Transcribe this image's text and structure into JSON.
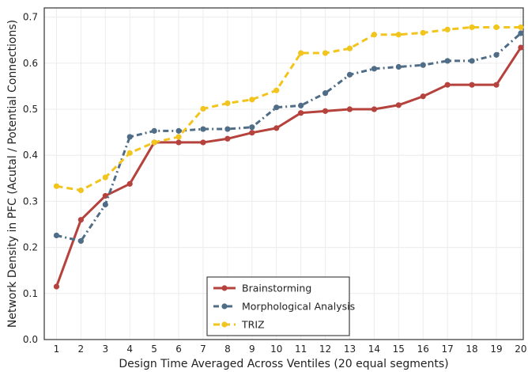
{
  "chart_data": {
    "type": "line",
    "title": "",
    "xlabel": "Design Time Averaged Across Ventiles (20 equal segments)",
    "ylabel": "Network Density in PFC (Acutal / Potential Connections)",
    "x": [
      1,
      2,
      3,
      4,
      5,
      6,
      7,
      8,
      9,
      10,
      11,
      12,
      13,
      14,
      15,
      16,
      17,
      18,
      19,
      20
    ],
    "xlim": [
      0.5,
      20.1
    ],
    "ylim": [
      0.0,
      0.72
    ],
    "yticks": [
      "0.0",
      "0.1",
      "0.2",
      "0.3",
      "0.4",
      "0.5",
      "0.6",
      "0.7"
    ],
    "xticks": [
      "1",
      "2",
      "3",
      "4",
      "5",
      "6",
      "7",
      "8",
      "9",
      "10",
      "11",
      "12",
      "13",
      "14",
      "15",
      "16",
      "17",
      "18",
      "19",
      "20"
    ],
    "grid": true,
    "legend_position": "bottom-center",
    "series": [
      {
        "name": "Brainstorming",
        "color": "#b5423c",
        "line_style": "solid",
        "values": [
          0.115,
          0.26,
          0.312,
          0.338,
          0.428,
          0.428,
          0.428,
          0.436,
          0.449,
          0.459,
          0.492,
          0.496,
          0.5,
          0.5,
          0.509,
          0.528,
          0.553,
          0.553,
          0.553,
          0.634
        ]
      },
      {
        "name": "Morphological Analysis",
        "color": "#4f6d86",
        "line_style": "dashdot",
        "values": [
          0.226,
          0.214,
          0.293,
          0.44,
          0.453,
          0.453,
          0.457,
          0.457,
          0.461,
          0.504,
          0.508,
          0.535,
          0.575,
          0.588,
          0.592,
          0.596,
          0.605,
          0.605,
          0.618,
          0.665
        ]
      },
      {
        "name": "TRIZ",
        "color": "#f2c41e",
        "line_style": "dashed",
        "values": [
          0.333,
          0.324,
          0.352,
          0.405,
          0.428,
          0.44,
          0.501,
          0.513,
          0.521,
          0.541,
          0.622,
          0.622,
          0.632,
          0.662,
          0.662,
          0.666,
          0.673,
          0.678,
          0.678,
          0.678
        ]
      }
    ]
  }
}
